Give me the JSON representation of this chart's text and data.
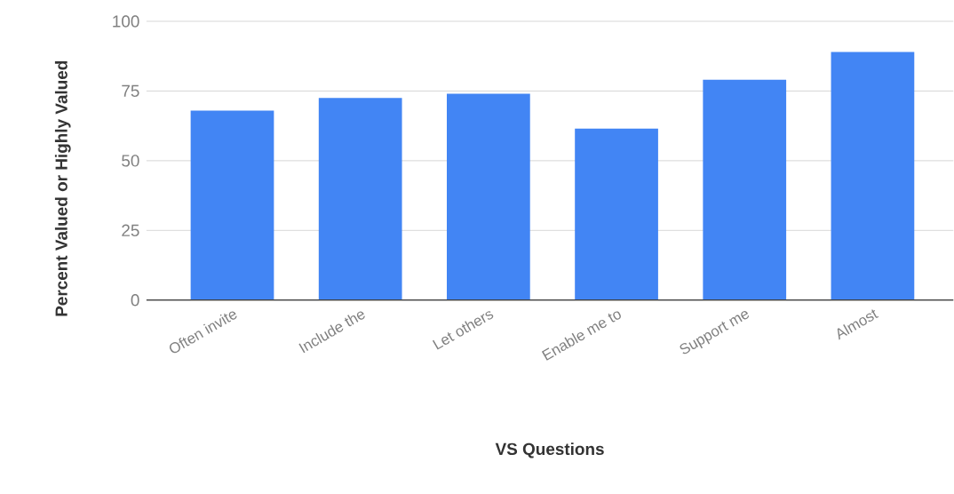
{
  "chart_data": {
    "type": "bar",
    "xlabel": "VS Questions",
    "ylabel": "Percent Valued or Highly Valued",
    "categories": [
      "Often invite",
      "Include the",
      "Let others",
      "Enable me to",
      "Support me",
      "Almost"
    ],
    "values": [
      68,
      72.5,
      74,
      61.5,
      79,
      89
    ],
    "color": "#4285f4",
    "ylim": [
      0,
      100
    ],
    "yticks": [
      0,
      25,
      50,
      75,
      100
    ],
    "grid": "y"
  }
}
